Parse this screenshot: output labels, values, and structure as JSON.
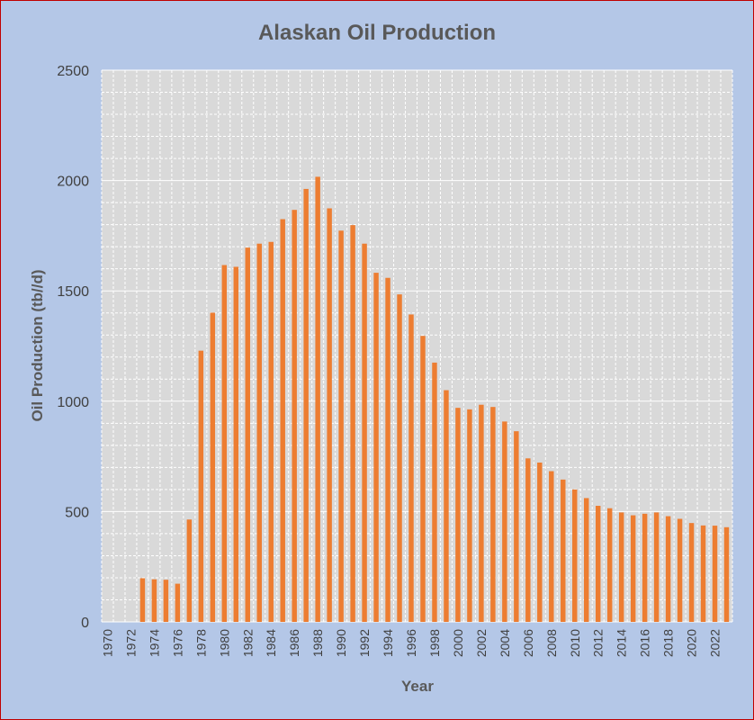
{
  "colors": {
    "background": "#b4c7e7",
    "plot_area": "#d9d9d9",
    "bar": "#ed7d31",
    "border": "#c00000",
    "gridline": "#ffffff",
    "text": "#595959"
  },
  "chart_data": {
    "type": "bar",
    "title": "Alaskan Oil Production",
    "xlabel": "Year",
    "ylabel": "Oil Production (tb//d)",
    "ylim": [
      0,
      2500
    ],
    "yticks": [
      0,
      500,
      1000,
      1500,
      2000,
      2500
    ],
    "grid": true,
    "legend": "none",
    "categories": [
      "1970",
      "1971",
      "1972",
      "1973",
      "1974",
      "1975",
      "1976",
      "1977",
      "1978",
      "1979",
      "1980",
      "1981",
      "1982",
      "1983",
      "1984",
      "1985",
      "1986",
      "1987",
      "1988",
      "1989",
      "1990",
      "1991",
      "1992",
      "1993",
      "1994",
      "1995",
      "1996",
      "1997",
      "1998",
      "1999",
      "2000",
      "2001",
      "2002",
      "2003",
      "2004",
      "2005",
      "2006",
      "2007",
      "2008",
      "2009",
      "2010",
      "2011",
      "2012",
      "2013",
      "2014",
      "2015",
      "2016",
      "2017",
      "2018",
      "2019",
      "2020",
      "2021",
      "2022",
      "2023"
    ],
    "x_tick_labels": [
      "1970",
      "1972",
      "1974",
      "1976",
      "1978",
      "1980",
      "1982",
      "1984",
      "1986",
      "1988",
      "1990",
      "1992",
      "1994",
      "1996",
      "1998",
      "2000",
      "2002",
      "2004",
      "2006",
      "2008",
      "2010",
      "2012",
      "2014",
      "2016",
      "2018",
      "2020",
      "2022"
    ],
    "values": [
      0,
      0,
      0,
      198,
      193,
      191,
      173,
      464,
      1229,
      1401,
      1617,
      1609,
      1696,
      1714,
      1722,
      1825,
      1867,
      1962,
      2017,
      1874,
      1773,
      1798,
      1714,
      1582,
      1559,
      1484,
      1393,
      1296,
      1175,
      1050,
      970,
      963,
      984,
      974,
      908,
      864,
      741,
      722,
      683,
      645,
      600,
      561,
      526,
      515,
      496,
      483,
      490,
      496,
      479,
      467,
      448,
      437,
      436,
      429
    ]
  }
}
